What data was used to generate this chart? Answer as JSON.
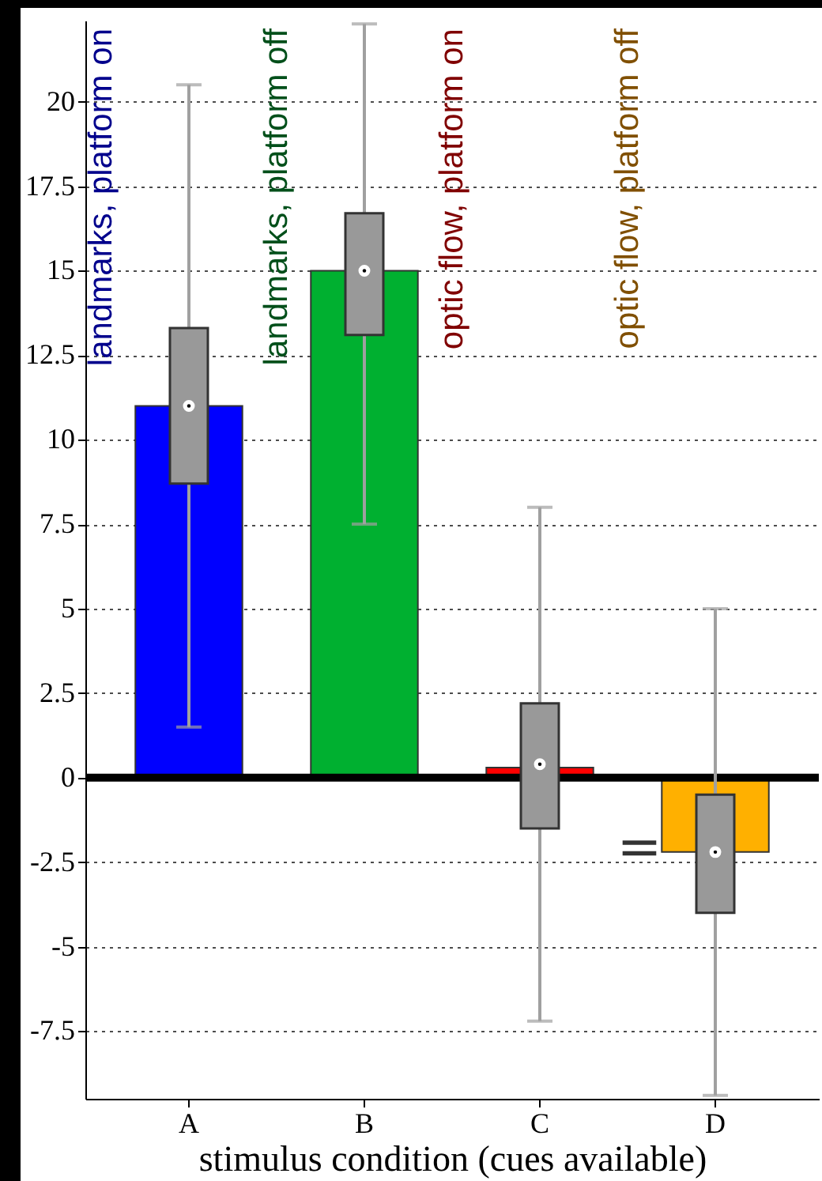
{
  "chart_data": {
    "type": "bar",
    "xlabel": "stimulus condition (cues available)",
    "categories": [
      "A",
      "B",
      "C",
      "D"
    ],
    "series": [
      {
        "values": [
          11,
          15,
          0.3,
          -2.2
        ],
        "colors": [
          "#0000ff",
          "#00b030",
          "#ff0000",
          "#ffb000"
        ]
      },
      {
        "type": "box",
        "color": "#999999",
        "boxes": [
          {
            "low": 1.5,
            "q1": 8.7,
            "median": 11,
            "q3": 13.3,
            "high": 20.5
          },
          {
            "low": 7.5,
            "q1": 13.1,
            "median": 15,
            "q3": 16.7,
            "high": 22.3
          },
          {
            "low": -7.2,
            "q1": -1.5,
            "median": 0.4,
            "q3": 2.2,
            "high": 8.0
          },
          {
            "low": -9.4,
            "q1": -4.0,
            "median": -2.2,
            "q3": -0.5,
            "high": 5.0
          }
        ]
      }
    ],
    "ylim": [
      -9.5,
      22.4
    ],
    "yticks": [
      -7.5,
      -5,
      -2.5,
      0,
      2.5,
      5,
      7.5,
      10,
      12.5,
      15,
      17.5,
      20
    ],
    "grid": "y",
    "ref_lines": [
      {
        "axis": "y",
        "value": 0,
        "color": "#000000"
      }
    ],
    "annotations": [
      "landmarks,  platform on",
      "landmarks,  platform off",
      "optic flow, platform on",
      "optic flow, platform off",
      {
        "text": "=",
        "x": "D",
        "y": -2.1
      }
    ]
  }
}
